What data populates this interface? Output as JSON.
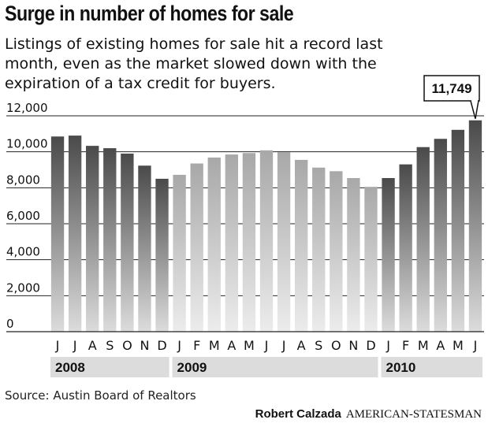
{
  "chart_data": {
    "type": "bar",
    "title": "Surge in number of homes for sale",
    "subtitle": "Listings of existing homes for sale hit a record last month, even as the market slowed down with the expiration of a tax credit for buyers.",
    "categories": [
      "J",
      "J",
      "A",
      "S",
      "O",
      "N",
      "D",
      "J",
      "F",
      "M",
      "A",
      "M",
      "J",
      "J",
      "A",
      "S",
      "O",
      "N",
      "D",
      "J",
      "F",
      "M",
      "A",
      "M",
      "J"
    ],
    "values": [
      10850,
      10900,
      10330,
      10200,
      9900,
      9230,
      8500,
      8720,
      9350,
      9680,
      9850,
      9930,
      10080,
      9980,
      9550,
      9120,
      8920,
      8540,
      8050,
      8540,
      9300,
      10260,
      10720,
      11220,
      11749
    ],
    "ylim": [
      0,
      12000
    ],
    "yticks": [
      0,
      2000,
      4000,
      6000,
      8000,
      10000,
      12000
    ],
    "ytick_labels": [
      "0",
      "2,000",
      "4,000",
      "6,000",
      "8,000",
      "10,000",
      "12,000"
    ],
    "xlabel": "",
    "ylabel": "",
    "grid": true,
    "year_groups": [
      {
        "label": "2008",
        "start": 0,
        "end": 6,
        "shade": "dark"
      },
      {
        "label": "2009",
        "start": 7,
        "end": 18,
        "shade": "light"
      },
      {
        "label": "2010",
        "start": 19,
        "end": 24,
        "shade": "dark"
      }
    ],
    "callout": {
      "label": "11,749",
      "index": 24
    }
  },
  "source": "Source: Austin Board of Realtors",
  "credit": {
    "author": "Robert Calzada",
    "organization": "AMERICAN-STATESMAN"
  },
  "colors": {
    "dark_top": "#4a4a4a",
    "dark_bottom": "#dcdcdc",
    "light_top": "#a8a8a8",
    "light_bottom": "#ececec",
    "grid": "#222222",
    "year_band": "#dcdcdc"
  }
}
